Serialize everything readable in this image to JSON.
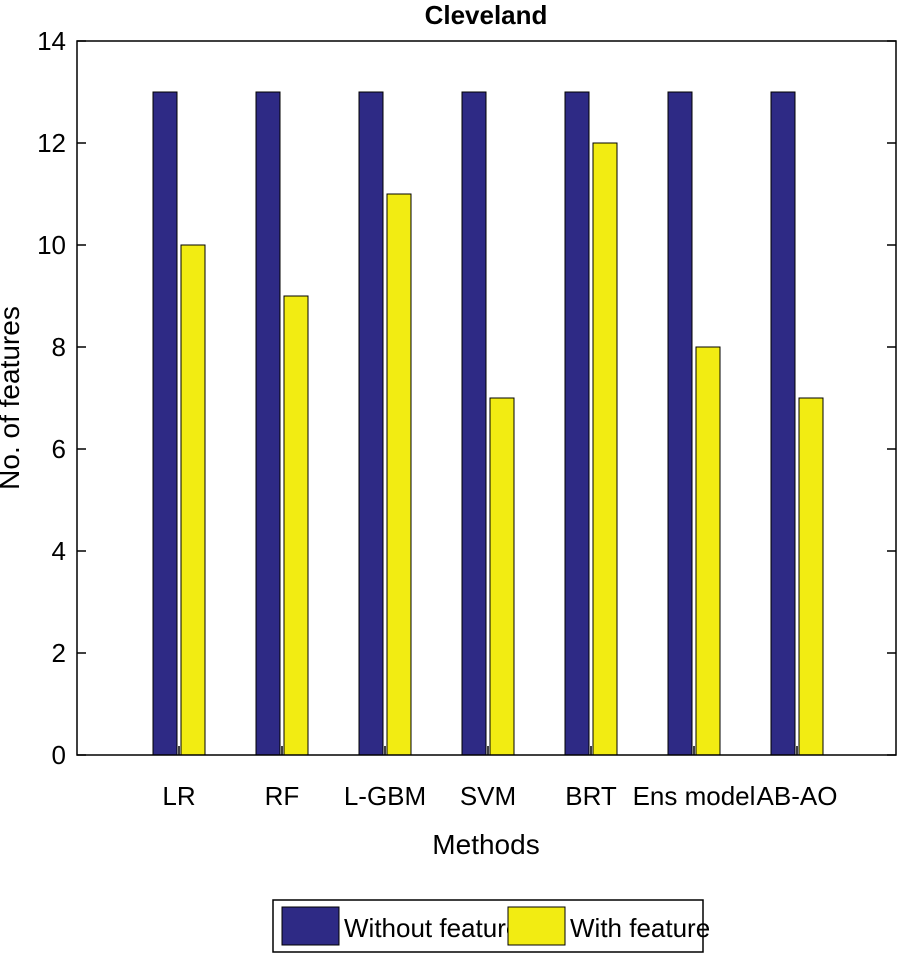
{
  "chart_data": {
    "type": "bar",
    "title": "Cleveland",
    "xlabel": "Methods",
    "ylabel": "No. of features",
    "ylim": [
      0,
      14
    ],
    "yticks": [
      0,
      2,
      4,
      6,
      8,
      10,
      12,
      14
    ],
    "grid": false,
    "legend_position": "bottom",
    "categories": [
      "LR",
      "RF",
      "L-GBM",
      "SVM",
      "BRT",
      "Ens model",
      "AB-AO"
    ],
    "series": [
      {
        "name": "Without feature",
        "color": "#2e2a85",
        "values": [
          13,
          13,
          13,
          13,
          13,
          13,
          13
        ]
      },
      {
        "name": "With feature",
        "color": "#f2ec12",
        "values": [
          10,
          9,
          11,
          7,
          12,
          8,
          7
        ]
      }
    ]
  }
}
